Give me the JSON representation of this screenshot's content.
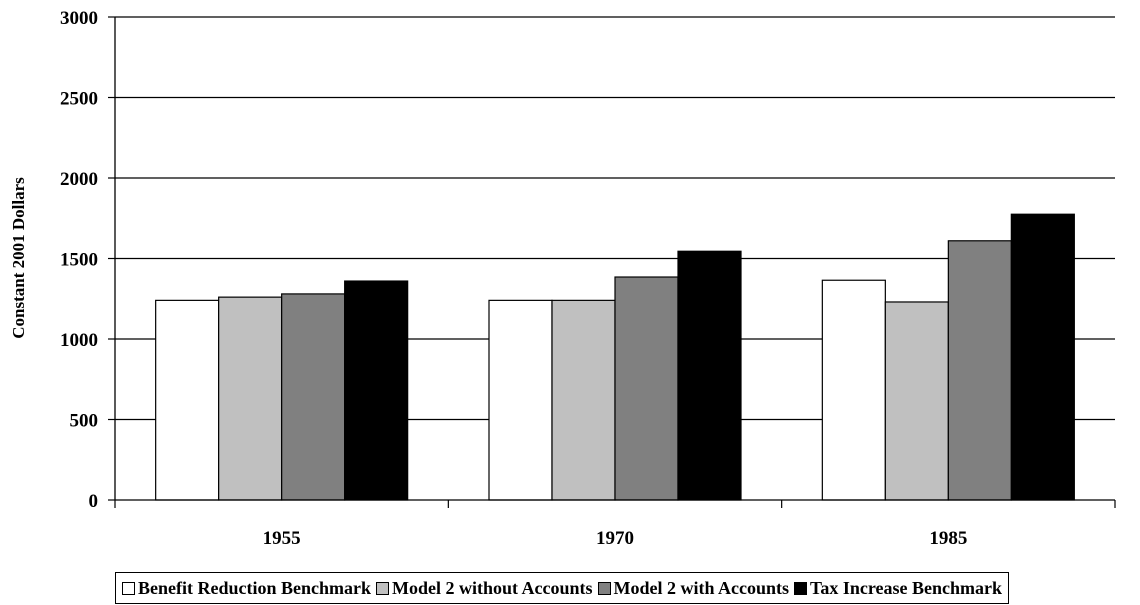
{
  "chart_data": {
    "type": "bar",
    "title": "",
    "xlabel": "",
    "ylabel": "Constant 2001 Dollars",
    "ylim": [
      0,
      3000
    ],
    "yticks": [
      0,
      500,
      1000,
      1500,
      2000,
      2500,
      3000
    ],
    "categories": [
      "1955",
      "1970",
      "1985"
    ],
    "grid": true,
    "legend_position": "bottom",
    "series": [
      {
        "name": "Benefit Reduction Benchmark",
        "color": "#ffffff",
        "values": [
          1240,
          1240,
          1365
        ]
      },
      {
        "name": "Model 2 without Accounts",
        "color": "#c0c0c0",
        "values": [
          1260,
          1240,
          1230
        ]
      },
      {
        "name": "Model 2 with Accounts",
        "color": "#808080",
        "values": [
          1280,
          1385,
          1610
        ]
      },
      {
        "name": "Tax Increase Benchmark",
        "color": "#000000",
        "values": [
          1360,
          1545,
          1775
        ]
      }
    ]
  }
}
